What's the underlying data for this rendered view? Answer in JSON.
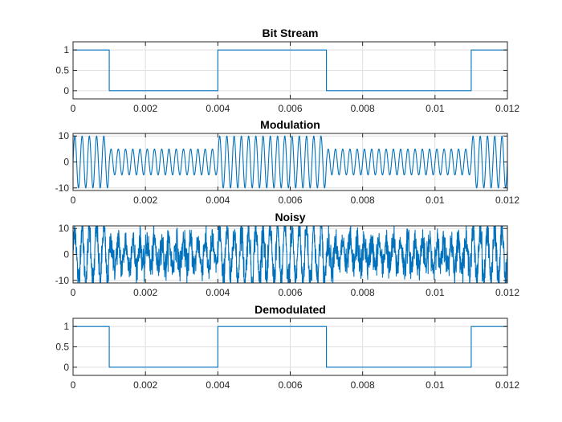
{
  "figure": {
    "background": "#ffffff",
    "axes_color": "#262626",
    "grid_color": "#dfdfdf",
    "line_color": "#0072BD"
  },
  "chart_data": [
    {
      "type": "line",
      "title": "Bit Stream",
      "xlabel": "",
      "ylabel": "",
      "xlim": [
        0,
        0.012
      ],
      "ylim": [
        -0.2,
        1.2
      ],
      "grid": true,
      "xticks": [
        0,
        0.002,
        0.004,
        0.006,
        0.008,
        0.01,
        0.012
      ],
      "xtick_labels": [
        "0",
        "0.002",
        "0.004",
        "0.006",
        "0.008",
        "0.01",
        "0.012"
      ],
      "yticks": [
        0,
        0.5,
        1
      ],
      "ytick_labels": [
        "0",
        "0.5",
        "1"
      ],
      "series": [
        {
          "style": "step",
          "x": [
            0,
            0.001,
            0.001,
            0.004,
            0.004,
            0.007,
            0.007,
            0.011,
            0.011,
            0.012
          ],
          "y": [
            1,
            1,
            0,
            0,
            1,
            1,
            0,
            0,
            1,
            1
          ]
        }
      ]
    },
    {
      "type": "line",
      "title": "Modulation",
      "xlabel": "",
      "ylabel": "",
      "xlim": [
        0,
        0.012
      ],
      "ylim": [
        -11,
        11
      ],
      "grid": true,
      "xticks": [
        0,
        0.002,
        0.004,
        0.006,
        0.008,
        0.01,
        0.012
      ],
      "xtick_labels": [
        "0",
        "0.002",
        "0.004",
        "0.006",
        "0.008",
        "0.01",
        "0.012"
      ],
      "yticks": [
        -10,
        0,
        10
      ],
      "ytick_labels": [
        "-10",
        "0",
        "10"
      ],
      "series": [
        {
          "style": "ask",
          "carrier_hz": 5000,
          "bits": [
            1,
            0,
            0,
            0,
            1,
            1,
            1,
            0,
            0,
            0,
            0,
            1
          ],
          "bit_duration": 0.001,
          "amplitude_one": 10,
          "amplitude_zero": 5
        }
      ]
    },
    {
      "type": "line",
      "title": "Noisy",
      "xlabel": "",
      "ylabel": "",
      "xlim": [
        0,
        0.012
      ],
      "ylim": [
        -11,
        11
      ],
      "grid": true,
      "xticks": [
        0,
        0.002,
        0.004,
        0.006,
        0.008,
        0.01,
        0.012
      ],
      "xtick_labels": [
        "0",
        "0.002",
        "0.004",
        "0.006",
        "0.008",
        "0.01",
        "0.012"
      ],
      "yticks": [
        -10,
        0,
        10
      ],
      "ytick_labels": [
        "-10",
        "0",
        "10"
      ],
      "series": [
        {
          "style": "ask_noise",
          "carrier_hz": 5000,
          "bits": [
            1,
            0,
            0,
            0,
            1,
            1,
            1,
            0,
            0,
            0,
            0,
            1
          ],
          "bit_duration": 0.001,
          "amplitude_one": 10,
          "amplitude_zero": 5,
          "noise_std": 3
        }
      ]
    },
    {
      "type": "line",
      "title": "Demodulated",
      "xlabel": "",
      "ylabel": "",
      "xlim": [
        0,
        0.012
      ],
      "ylim": [
        -0.2,
        1.2
      ],
      "grid": true,
      "xticks": [
        0,
        0.002,
        0.004,
        0.006,
        0.008,
        0.01,
        0.012
      ],
      "xtick_labels": [
        "0",
        "0.002",
        "0.004",
        "0.006",
        "0.008",
        "0.01",
        "0.012"
      ],
      "yticks": [
        0,
        0.5,
        1
      ],
      "ytick_labels": [
        "0",
        "0.5",
        "1"
      ],
      "series": [
        {
          "style": "step",
          "x": [
            0,
            0.001,
            0.001,
            0.004,
            0.004,
            0.007,
            0.007,
            0.011,
            0.011,
            0.012
          ],
          "y": [
            1,
            1,
            0,
            0,
            1,
            1,
            0,
            0,
            1,
            1
          ]
        }
      ]
    }
  ]
}
